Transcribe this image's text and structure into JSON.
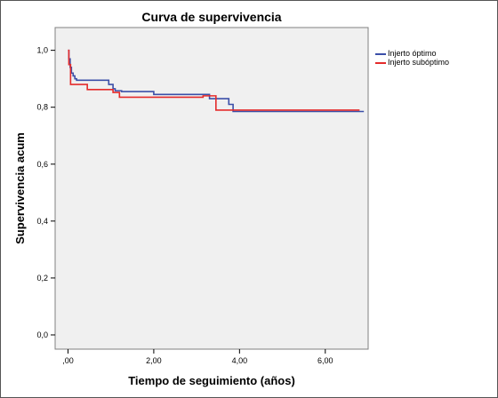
{
  "chart_data": {
    "type": "line",
    "title": "Curva de supervivencia",
    "xlabel": "Tiempo de seguimiento (años)",
    "ylabel": "Supervivencia acum",
    "xlim": [
      -0.3,
      7.0
    ],
    "ylim": [
      -0.05,
      1.08
    ],
    "x_ticks": [
      0,
      2,
      4,
      6
    ],
    "x_tick_labels": [
      ",00",
      "2,00",
      "4,00",
      "6,00"
    ],
    "y_ticks": [
      0,
      0.2,
      0.4,
      0.6,
      0.8,
      1.0
    ],
    "y_tick_labels": [
      "0,0",
      "0,2",
      "0,4",
      "0,6",
      "0,8",
      "1,0"
    ],
    "grid": false,
    "legend_position": "top-right",
    "step": true,
    "series": [
      {
        "name": "Injerto óptimo",
        "color": "#3b4fa8",
        "x": [
          0,
          0.02,
          0.05,
          0.08,
          0.12,
          0.16,
          0.2,
          0.95,
          1.05,
          1.1,
          1.25,
          2.0,
          3.3,
          3.75,
          3.85,
          6.9
        ],
        "y": [
          1.0,
          0.97,
          0.94,
          0.92,
          0.91,
          0.9,
          0.895,
          0.88,
          0.865,
          0.858,
          0.855,
          0.845,
          0.83,
          0.81,
          0.785,
          0.785
        ]
      },
      {
        "name": "Injerto subóptimo",
        "color": "#e42b2b",
        "x": [
          0,
          0.02,
          0.06,
          0.45,
          1.05,
          1.2,
          3.15,
          3.45,
          6.8
        ],
        "y": [
          1.0,
          0.95,
          0.88,
          0.862,
          0.852,
          0.835,
          0.84,
          0.79,
          0.79
        ]
      }
    ]
  }
}
